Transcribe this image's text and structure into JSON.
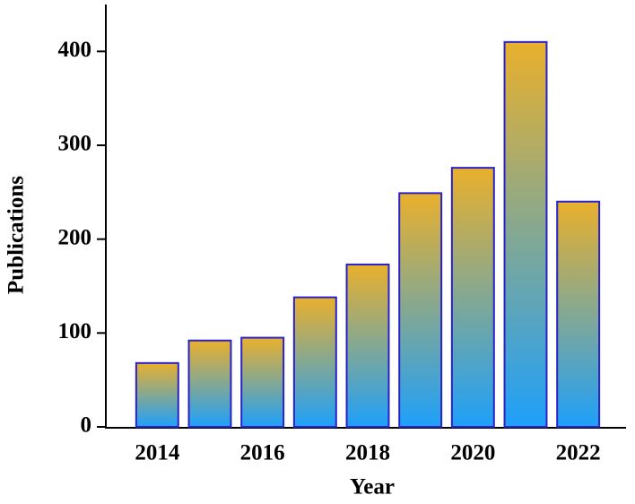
{
  "chart_data": {
    "type": "bar",
    "x_label": "Year",
    "y_label": "Publications",
    "categories": [
      "2014",
      null,
      "2016",
      null,
      "2018",
      null,
      "2020",
      null,
      "2022"
    ],
    "values": [
      68,
      92,
      95,
      138,
      173,
      249,
      276,
      410,
      240
    ],
    "gradient": [
      "#e9b02c",
      "#1ea0fa"
    ],
    "edge_color": "#2a22c8",
    "ylim": [
      0,
      450
    ],
    "yticks": [
      0,
      100,
      200,
      300,
      400
    ],
    "grid": false
  }
}
